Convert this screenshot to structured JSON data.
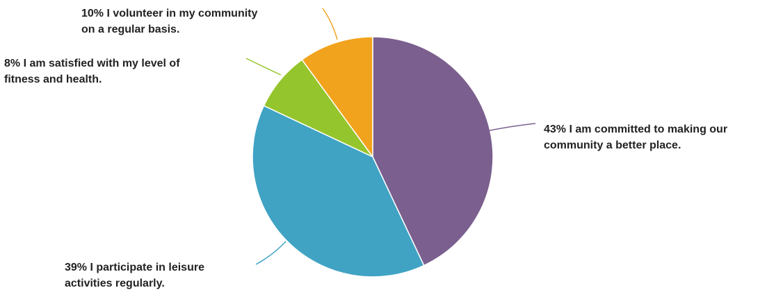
{
  "chart_data": {
    "type": "pie",
    "slices": [
      {
        "value": 43,
        "label_lines": [
          "43% I am committed to making our",
          "community a better place."
        ],
        "color": "#7b5f8e"
      },
      {
        "value": 39,
        "label_lines": [
          "39% I participate in leisure",
          "activities regularly."
        ],
        "color": "#40a3c4"
      },
      {
        "value": 8,
        "label_lines": [
          "8% I am satisfied with my level of",
          "fitness and health."
        ],
        "color": "#95c52c"
      },
      {
        "value": 10,
        "label_lines": [
          "10% I volunteer in my community",
          "on a regular basis."
        ],
        "color": "#f2a31d"
      }
    ]
  }
}
